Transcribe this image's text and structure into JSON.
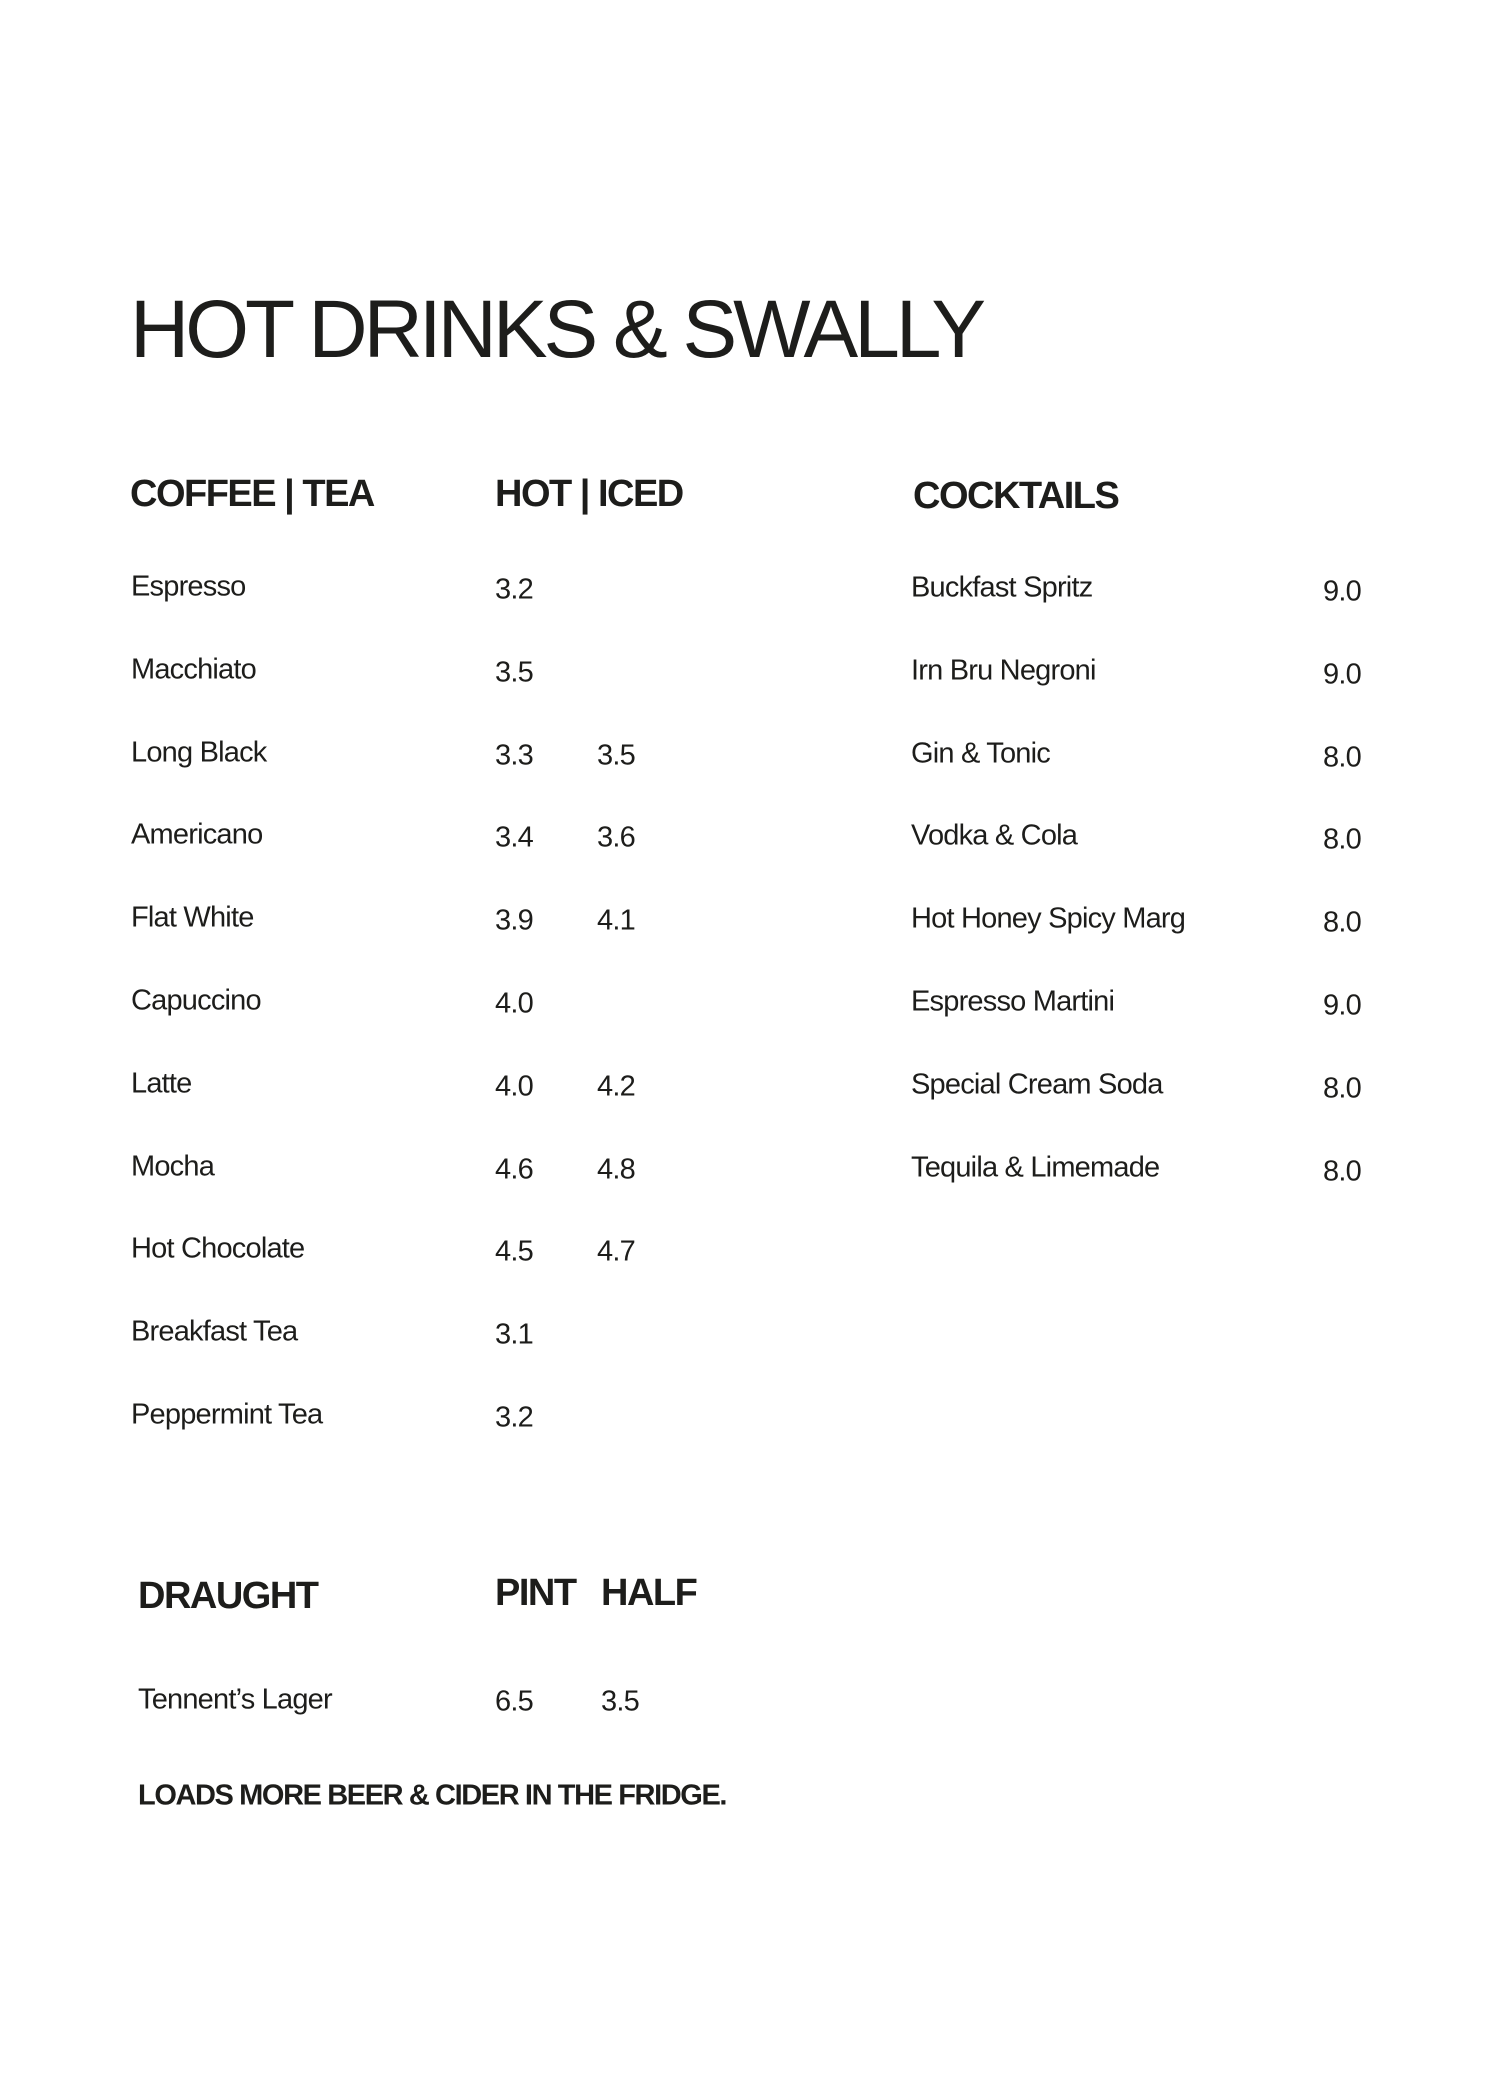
{
  "title": "HOT DRINKS & SWALLY",
  "coffee": {
    "header": "COFFEE | TEA",
    "price_header": "HOT | ICED",
    "items": [
      {
        "name": "Espresso",
        "hot": "3.2",
        "iced": ""
      },
      {
        "name": "Macchiato",
        "hot": "3.5",
        "iced": ""
      },
      {
        "name": "Long Black",
        "hot": "3.3",
        "iced": "3.5"
      },
      {
        "name": "Americano",
        "hot": "3.4",
        "iced": "3.6"
      },
      {
        "name": "Flat White",
        "hot": "3.9",
        "iced": "4.1"
      },
      {
        "name": "Capuccino",
        "hot": "4.0",
        "iced": ""
      },
      {
        "name": "Latte",
        "hot": "4.0",
        "iced": "4.2"
      },
      {
        "name": "Mocha",
        "hot": "4.6",
        "iced": "4.8"
      },
      {
        "name": "Hot Chocolate",
        "hot": "4.5",
        "iced": "4.7"
      },
      {
        "name": "Breakfast Tea",
        "hot": "3.1",
        "iced": ""
      },
      {
        "name": "Peppermint Tea",
        "hot": "3.2",
        "iced": ""
      }
    ]
  },
  "cocktails": {
    "header": "COCKTAILS",
    "items": [
      {
        "name": "Buckfast Spritz",
        "price": "9.0"
      },
      {
        "name": "Irn Bru Negroni",
        "price": "9.0"
      },
      {
        "name": "Gin & Tonic",
        "price": "8.0"
      },
      {
        "name": "Vodka & Cola",
        "price": "8.0"
      },
      {
        "name": "Hot Honey Spicy Marg",
        "price": "8.0"
      },
      {
        "name": "Espresso Martini",
        "price": "9.0"
      },
      {
        "name": "Special Cream Soda",
        "price": "8.0"
      },
      {
        "name": "Tequila & Limemade",
        "price": "8.0"
      }
    ]
  },
  "draught": {
    "header": "DRAUGHT",
    "pint_header": "PINT",
    "half_header": "HALF",
    "items": [
      {
        "name": "Tennent’s Lager",
        "pint": "6.5",
        "half": "3.5"
      }
    ],
    "note": "LOADS MORE BEER & CIDER IN THE FRIDGE."
  }
}
